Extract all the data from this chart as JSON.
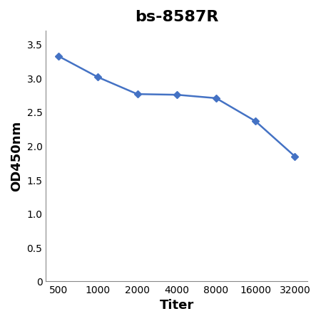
{
  "title": "bs-8587R",
  "xlabel": "Titer",
  "ylabel": "OD450nm",
  "x_values": [
    500,
    1000,
    2000,
    4000,
    8000,
    16000,
    32000
  ],
  "y_values": [
    3.32,
    3.01,
    2.76,
    2.75,
    2.7,
    2.36,
    1.84
  ],
  "line_color": "#4472C4",
  "marker": "D",
  "marker_size": 5,
  "line_width": 1.8,
  "ylim": [
    0,
    3.7
  ],
  "yticks": [
    0,
    0.5,
    1.0,
    1.5,
    2.0,
    2.5,
    3.0,
    3.5
  ],
  "xticks": [
    500,
    1000,
    2000,
    4000,
    8000,
    16000,
    32000
  ],
  "title_fontsize": 16,
  "axis_label_fontsize": 13,
  "tick_fontsize": 10,
  "background_color": "#ffffff",
  "border_color": "#aaaaaa"
}
